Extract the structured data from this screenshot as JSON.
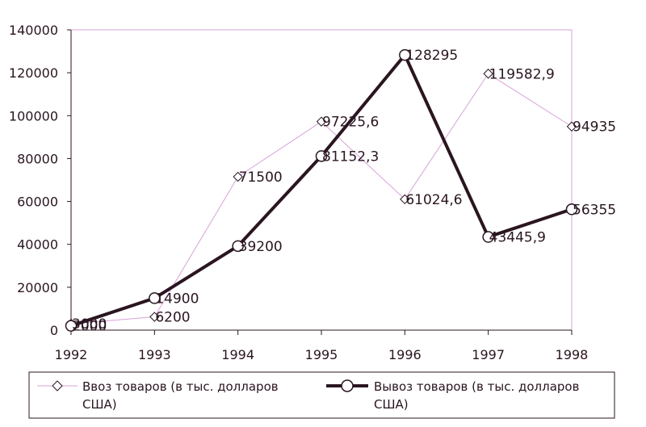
{
  "chart_data": {
    "type": "line",
    "categories": [
      "1992",
      "1993",
      "1994",
      "1995",
      "1996",
      "1997",
      "1998"
    ],
    "ylim": [
      0,
      140000
    ],
    "yticks": [
      "0",
      "20000",
      "40000",
      "60000",
      "80000",
      "100000",
      "120000",
      "140000"
    ],
    "ytick_values": [
      0,
      20000,
      40000,
      60000,
      80000,
      100000,
      120000,
      140000
    ],
    "grid": false,
    "legend_position": "bottom",
    "series": [
      {
        "name": "Ввоз товаров (в тыс. долларов США)",
        "legend_line1": "Ввоз товаров (в тыс. долларов",
        "legend_line2": "США)",
        "marker": "diamond",
        "color": "#d9a2d9",
        "values": [
          3000,
          6200,
          71500,
          97225.6,
          61024.6,
          119582.9,
          94935
        ],
        "labels": [
          "3000",
          "6200",
          "71500",
          "97225,6",
          "61024,6",
          "119582,9",
          "94935"
        ]
      },
      {
        "name": "Вывоз товаров (в тыс. долларов США)",
        "legend_line1": "Вывоз товаров (в тыс. долларов",
        "legend_line2": "США)",
        "marker": "circle",
        "color": "#2a1520",
        "values": [
          2000,
          14900,
          39200,
          81152.3,
          128295,
          43445.9,
          56355
        ],
        "labels": [
          "2000",
          "14900",
          "39200",
          "81152,3",
          "128295",
          "43445,9",
          "56355"
        ]
      }
    ]
  }
}
